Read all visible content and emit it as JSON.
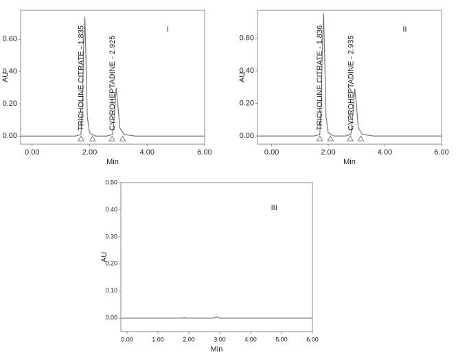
{
  "chart_data": [
    {
      "type": "line",
      "panel_label": "I",
      "xlabel": "Min",
      "ylabel": "AU",
      "xlim": [
        -0.4,
        6.0
      ],
      "ylim": [
        -0.05,
        0.78
      ],
      "xticks": [
        {
          "value": 0,
          "label": "0.00"
        },
        {
          "value": 2,
          "label": "2.00"
        },
        {
          "value": 4,
          "label": "4.00"
        },
        {
          "value": 6,
          "label": "6.00"
        }
      ],
      "yticks": [
        {
          "value": 0,
          "label": "0.00"
        },
        {
          "value": 0.2,
          "label": "0.20"
        },
        {
          "value": 0.4,
          "label": "0.40"
        },
        {
          "value": 0.6,
          "label": "0.60"
        }
      ],
      "x": [
        -0.4,
        0,
        1.5,
        1.7,
        1.75,
        1.8,
        1.835,
        1.87,
        1.92,
        2.0,
        2.2,
        2.6,
        2.8,
        2.87,
        2.925,
        2.98,
        3.05,
        3.2,
        3.6,
        6.0
      ],
      "series": [
        {
          "color": "#777777",
          "values": [
            0,
            0,
            0,
            0.01,
            0.2,
            0.6,
            0.74,
            0.5,
            0.12,
            0.02,
            0,
            0,
            0.01,
            0.15,
            0.3,
            0.2,
            0.05,
            0.01,
            0,
            0
          ]
        }
      ],
      "peaks": [
        {
          "label": "TRICHOLINE CITRATE - 1.835",
          "time": 1.835
        },
        {
          "label": "CYPROHEPTADINE - 2.925",
          "time": 2.925
        }
      ],
      "integration_marks": [
        1.7,
        2.1,
        2.78,
        3.15
      ]
    },
    {
      "type": "line",
      "panel_label": "II",
      "xlabel": "Min",
      "ylabel": "AU",
      "xlim": [
        -0.5,
        6.0
      ],
      "ylim": [
        -0.05,
        0.77
      ],
      "xticks": [
        {
          "value": 0,
          "label": "0.00"
        },
        {
          "value": 2,
          "label": "2.00"
        },
        {
          "value": 4,
          "label": "4.00"
        },
        {
          "value": 6,
          "label": "6.00"
        }
      ],
      "yticks": [
        {
          "value": 0,
          "label": "0.00"
        },
        {
          "value": 0.2,
          "label": "0.20"
        },
        {
          "value": 0.4,
          "label": "0.40"
        },
        {
          "value": 0.6,
          "label": "0.60"
        }
      ],
      "x": [
        -0.5,
        0,
        1.5,
        1.7,
        1.75,
        1.8,
        1.836,
        1.87,
        1.92,
        2.0,
        2.2,
        2.6,
        2.8,
        2.88,
        2.935,
        2.99,
        3.06,
        3.2,
        3.6,
        6.0
      ],
      "series": [
        {
          "color": "#777777",
          "values": [
            0,
            0,
            0,
            0.01,
            0.2,
            0.6,
            0.75,
            0.5,
            0.12,
            0.02,
            0,
            0,
            0.01,
            0.15,
            0.29,
            0.2,
            0.05,
            0.01,
            0,
            0
          ]
        }
      ],
      "peaks": [
        {
          "label": "TRICHOLINE CITRATE - 1.836",
          "time": 1.836
        },
        {
          "label": "CYPROHEPTADINE - 2.935",
          "time": 2.935
        }
      ],
      "integration_marks": [
        1.7,
        2.08,
        2.78,
        3.15
      ]
    },
    {
      "type": "line",
      "panel_label": "III",
      "xlabel": "Min",
      "ylabel": "AU",
      "xlim": [
        -0.2,
        6.0
      ],
      "ylim": [
        -0.05,
        0.5
      ],
      "xticks": [
        {
          "value": 0,
          "label": "0.00"
        },
        {
          "value": 1,
          "label": "1.00"
        },
        {
          "value": 2,
          "label": "2.00"
        },
        {
          "value": 3,
          "label": "3.00"
        },
        {
          "value": 4,
          "label": "4.00"
        },
        {
          "value": 5,
          "label": "5.00"
        },
        {
          "value": 6,
          "label": "6.00"
        }
      ],
      "yticks": [
        {
          "value": 0,
          "label": "0.00"
        },
        {
          "value": 0.1,
          "label": "0.10"
        },
        {
          "value": 0.2,
          "label": "0.20"
        },
        {
          "value": 0.3,
          "label": "0.30"
        },
        {
          "value": 0.4,
          "label": "0.40"
        },
        {
          "value": 0.5,
          "label": "0.50"
        }
      ],
      "x": [
        -0.2,
        1.8,
        1.85,
        1.9,
        2.8,
        2.9,
        3.0,
        6.0
      ],
      "series": [
        {
          "color": "#777777",
          "values": [
            0,
            0,
            0.002,
            0,
            0,
            0.004,
            0,
            0
          ]
        }
      ]
    }
  ]
}
